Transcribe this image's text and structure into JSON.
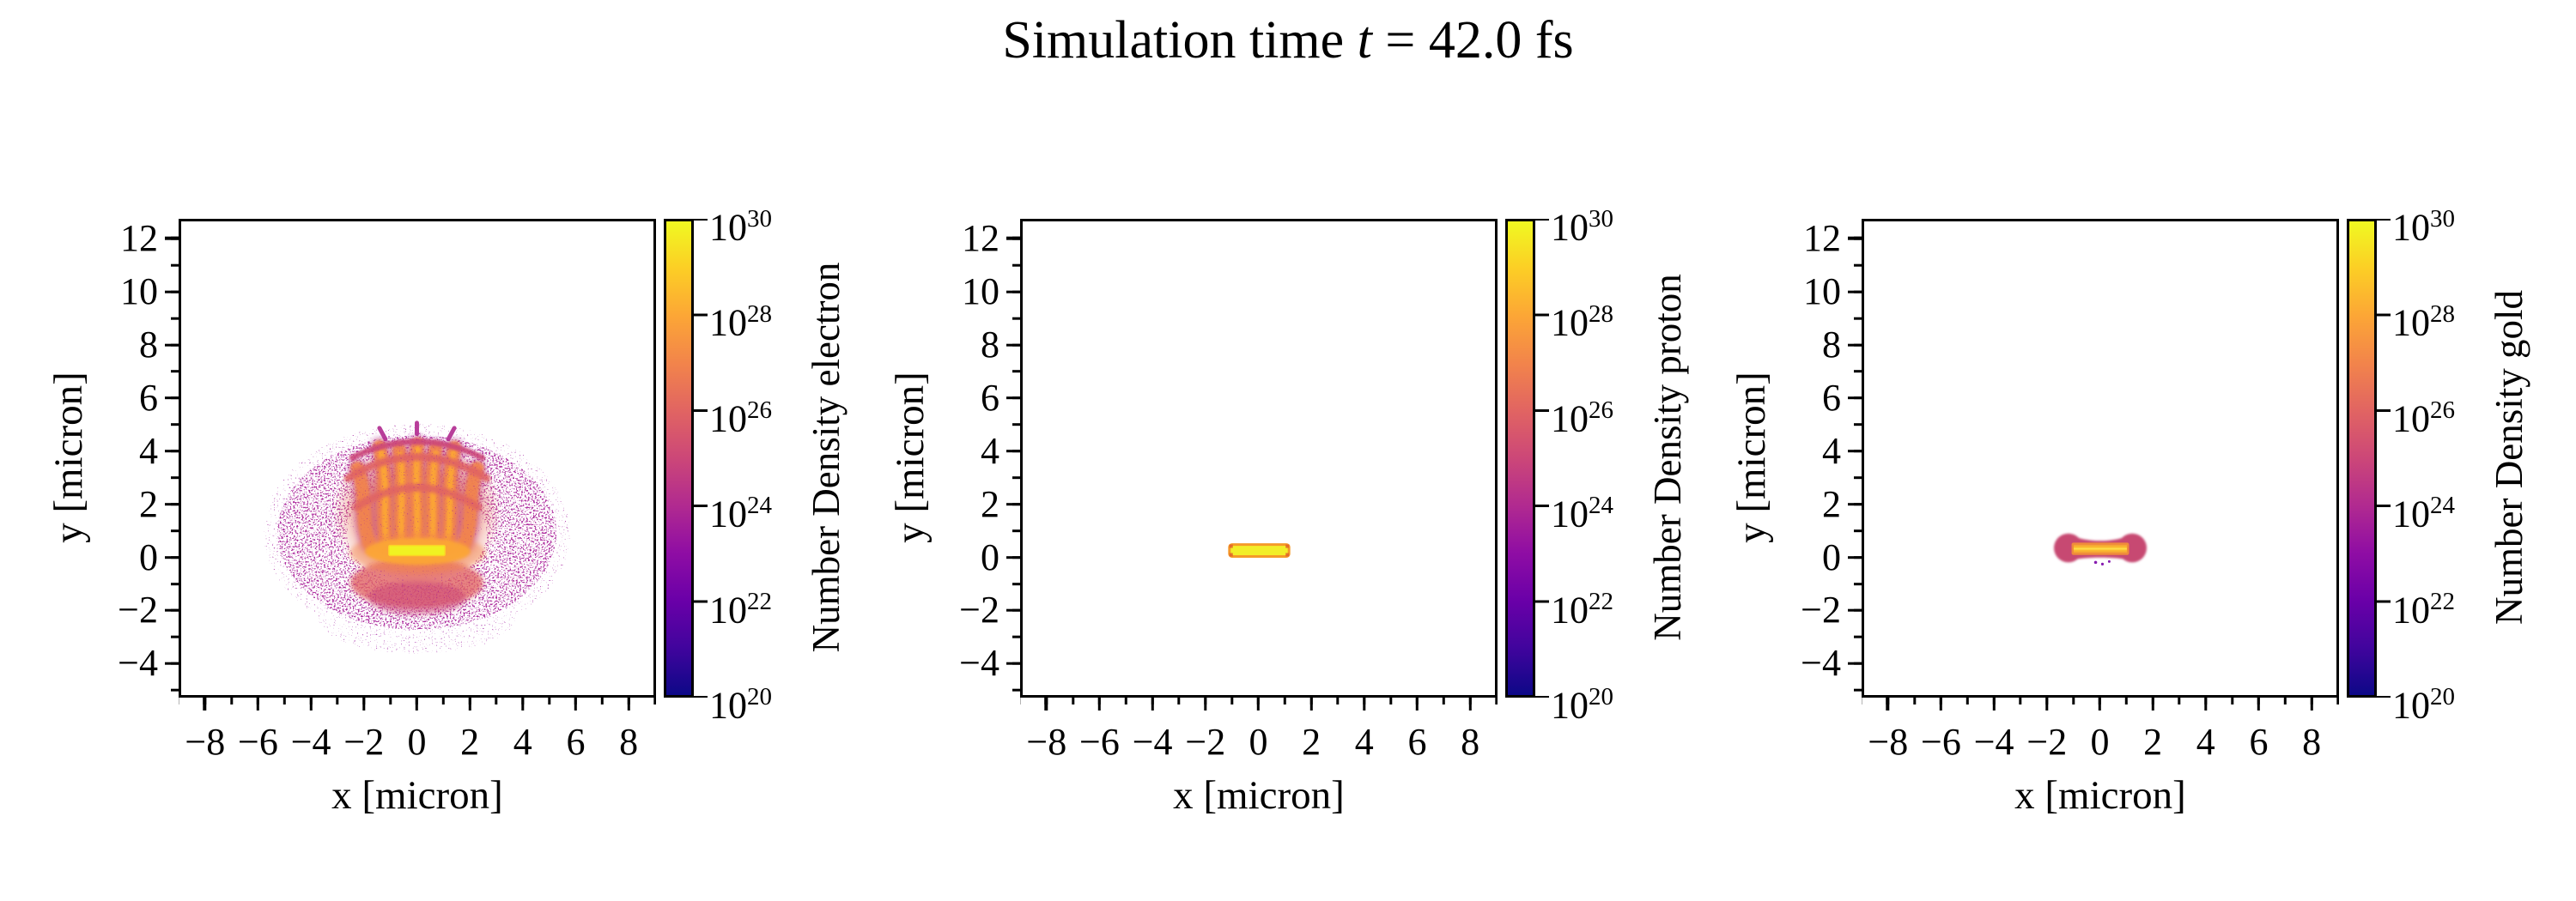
{
  "title": {
    "pre": "Simulation time ",
    "var": "t",
    "post": " = 42.0 fs",
    "full": "Simulation time t = 42.0 fs"
  },
  "axis": {
    "xlabel": "x [micron]",
    "ylabel": "y [micron]",
    "x_tick_labels": [
      "−8",
      "−6",
      "−4",
      "−2",
      "0",
      "2",
      "4",
      "6",
      "8"
    ],
    "y_tick_labels": [
      "12",
      "10",
      "8",
      "6",
      "4",
      "2",
      "0",
      "−2",
      "−4"
    ],
    "xlim": [
      -9,
      9
    ],
    "ylim": [
      -5.25,
      12.75
    ]
  },
  "colorbar": {
    "base": "10",
    "exponents": [
      "30",
      "28",
      "26",
      "24",
      "22",
      "20"
    ],
    "scale": "log",
    "vmin": "1e20",
    "vmax": "1e30",
    "colormap": "plasma"
  },
  "panels": [
    {
      "species": "electron",
      "colorbar_label": "Number Density electron"
    },
    {
      "species": "proton",
      "colorbar_label": "Number Density proton"
    },
    {
      "species": "gold",
      "colorbar_label": "Number Density gold"
    }
  ],
  "colors": {
    "background": "#ffffff",
    "frame": "#000000",
    "plasma_stops": [
      "#0d0887",
      "#41049d",
      "#6a00a8",
      "#8f0da4",
      "#b12a90",
      "#cc4778",
      "#e16462",
      "#f2844b",
      "#fca636",
      "#fcce25",
      "#f0f921"
    ],
    "target_bar_yellow": "#f2ee28",
    "target_bar_border_orange": "#f59a28",
    "electron_halo_magenta": "#a81c9c",
    "electron_plume_orange": "#f2844b",
    "gold_sheath_pink": "#c74a72",
    "gold_bar_orange": "#fbbb2e"
  },
  "chart_data": [
    {
      "type": "heatmap",
      "title": "Number Density electron",
      "xlabel": "x [micron]",
      "ylabel": "y [micron]",
      "xlim": [
        -9,
        9
      ],
      "ylim": [
        -5.25,
        12.75
      ],
      "x_ticks": [
        -8,
        -6,
        -4,
        -2,
        0,
        2,
        4,
        6,
        8
      ],
      "y_ticks": [
        12,
        10,
        8,
        6,
        4,
        2,
        0,
        -2,
        -4
      ],
      "colormap": "plasma",
      "colorbar_scale": "log",
      "colorbar_range": [
        1e+20,
        1e+30
      ],
      "colorbar_tick_values": [
        1e+30,
        1e+28,
        1e+26,
        1e+24,
        1e+22,
        1e+20
      ],
      "grid": false,
      "legend": "none",
      "features": [
        {
          "name": "target-bar",
          "shape": "rect",
          "x_extent": [
            -1.1,
            1.1
          ],
          "y_extent": [
            0.05,
            0.4
          ],
          "peak_density": "~1e30",
          "color": "yellow"
        },
        {
          "name": "plume-crown",
          "shape": "filamentary jets and arches above target",
          "x_extent": [
            -2.7,
            2.7
          ],
          "y_extent": [
            0.4,
            4.7
          ],
          "density": "~1e26-1e28",
          "color": "orange"
        },
        {
          "name": "lower-lobe",
          "shape": "swirls below target",
          "x_extent": [
            -2.5,
            2.5
          ],
          "y_extent": [
            -1.8,
            0.05
          ],
          "density": "~1e25-1e27",
          "color": "orange-pink"
        },
        {
          "name": "speckled-halo",
          "shape": "annular scattered-particle halo",
          "center": [
            0,
            0.9
          ],
          "x_extent": [
            -5.4,
            5.4
          ],
          "y_extent": [
            -2.9,
            4.7
          ],
          "density": "~1e22-1e24",
          "color": "magenta"
        }
      ]
    },
    {
      "type": "heatmap",
      "title": "Number Density proton",
      "xlabel": "x [micron]",
      "ylabel": "y [micron]",
      "xlim": [
        -9,
        9
      ],
      "ylim": [
        -5.25,
        12.75
      ],
      "x_ticks": [
        -8,
        -6,
        -4,
        -2,
        0,
        2,
        4,
        6,
        8
      ],
      "y_ticks": [
        12,
        10,
        8,
        6,
        4,
        2,
        0,
        -2,
        -4
      ],
      "colormap": "plasma",
      "colorbar_scale": "log",
      "colorbar_range": [
        1e+20,
        1e+30
      ],
      "colorbar_tick_values": [
        1e+30,
        1e+28,
        1e+26,
        1e+24,
        1e+22,
        1e+20
      ],
      "grid": false,
      "legend": "none",
      "features": [
        {
          "name": "target-bar",
          "shape": "rect",
          "x_extent": [
            -1.1,
            1.15
          ],
          "y_extent": [
            0.0,
            0.45
          ],
          "peak_density": "~1e30",
          "color": "yellow with orange rim"
        }
      ]
    },
    {
      "type": "heatmap",
      "title": "Number Density gold",
      "xlabel": "x [micron]",
      "ylabel": "y [micron]",
      "xlim": [
        -9,
        9
      ],
      "ylim": [
        -5.25,
        12.75
      ],
      "x_ticks": [
        -8,
        -6,
        -4,
        -2,
        0,
        2,
        4,
        6,
        8
      ],
      "y_ticks": [
        12,
        10,
        8,
        6,
        4,
        2,
        0,
        -2,
        -4
      ],
      "colormap": "plasma",
      "colorbar_scale": "log",
      "colorbar_range": [
        1e+20,
        1e+30
      ],
      "colorbar_tick_values": [
        1e+30,
        1e+28,
        1e+26,
        1e+24,
        1e+22,
        1e+20
      ],
      "grid": false,
      "legend": "none",
      "features": [
        {
          "name": "target-bar",
          "shape": "rect",
          "x_extent": [
            -1.05,
            1.1
          ],
          "y_extent": [
            0.05,
            0.4
          ],
          "density": "~1e28-1e29",
          "color": "orange-gold"
        },
        {
          "name": "expanding-sheath",
          "shape": "dog-bone lobes at bar ends",
          "x_extent": [
            -1.6,
            1.6
          ],
          "y_extent": [
            -0.15,
            0.9
          ],
          "density": "~1e24-1e26",
          "color": "crimson-pink"
        }
      ]
    }
  ]
}
